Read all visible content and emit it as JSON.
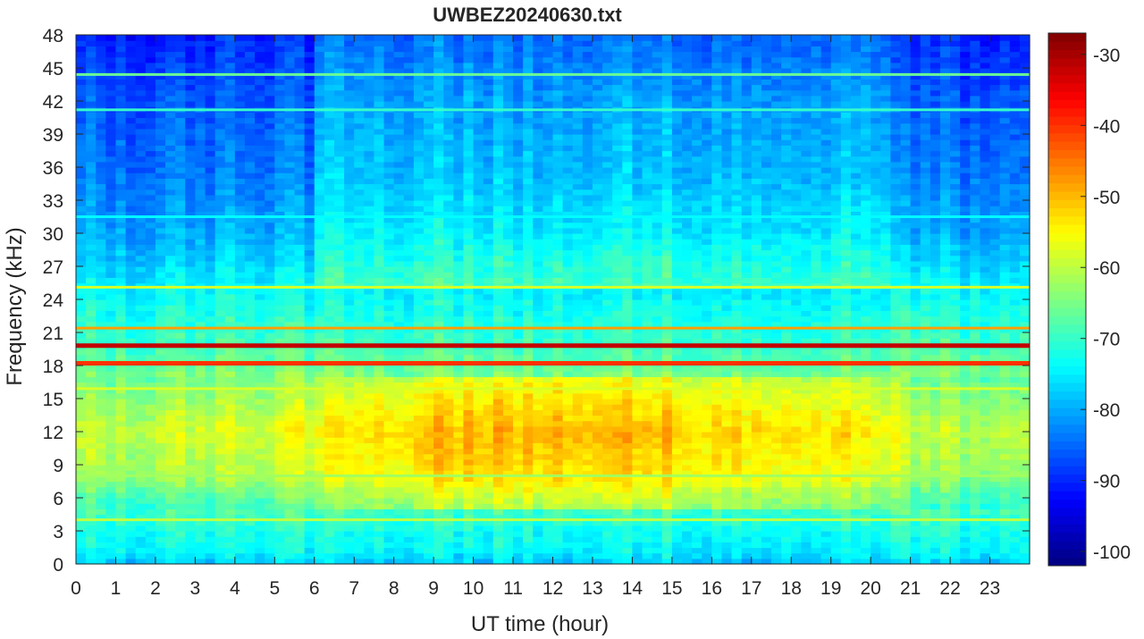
{
  "chart_data": {
    "type": "heatmap",
    "title": "UWBEZ20240630.txt",
    "xlabel": "UT time (hour)",
    "ylabel": "Frequency (kHz)",
    "xlim": [
      0,
      24
    ],
    "ylim": [
      0,
      48
    ],
    "x_ticks": [
      0,
      1,
      2,
      3,
      4,
      5,
      6,
      7,
      8,
      9,
      10,
      11,
      12,
      13,
      14,
      15,
      16,
      17,
      18,
      19,
      20,
      21,
      22,
      23
    ],
    "y_ticks": [
      0,
      3,
      6,
      9,
      12,
      15,
      18,
      21,
      24,
      27,
      30,
      33,
      36,
      39,
      42,
      45,
      48
    ],
    "colorbar": {
      "colormap": "jet",
      "clim": [
        -102,
        -27
      ],
      "ticks": [
        -30,
        -40,
        -50,
        -60,
        -70,
        -80,
        -90,
        -100
      ]
    },
    "features": {
      "background_level_by_freq": [
        {
          "f": 0,
          "level": -78
        },
        {
          "f": 1,
          "level": -74
        },
        {
          "f": 3,
          "level": -72
        },
        {
          "f": 6,
          "level": -66
        },
        {
          "f": 8,
          "level": -60
        },
        {
          "f": 12,
          "level": -57
        },
        {
          "f": 16,
          "level": -62
        },
        {
          "f": 18,
          "level": -66
        },
        {
          "f": 21,
          "level": -70
        },
        {
          "f": 25,
          "level": -74
        },
        {
          "f": 30,
          "level": -80
        },
        {
          "f": 36,
          "level": -84
        },
        {
          "f": 42,
          "level": -86
        },
        {
          "f": 48,
          "level": -90
        }
      ],
      "enhanced_band_by_hour": [
        {
          "t": 0,
          "level": -2
        },
        {
          "t": 5,
          "level": -1
        },
        {
          "t": 7,
          "level": 4
        },
        {
          "t": 10,
          "level": 8
        },
        {
          "t": 13,
          "level": 8
        },
        {
          "t": 16,
          "level": 6
        },
        {
          "t": 19,
          "level": 5
        },
        {
          "t": 20.5,
          "level": 2
        },
        {
          "t": 21,
          "level": -3
        },
        {
          "t": 24,
          "level": -3
        }
      ],
      "transmitter_lines": [
        {
          "f": 19.8,
          "level": -32
        },
        {
          "f": 18.2,
          "level": -40
        },
        {
          "f": 21.4,
          "level": -48
        },
        {
          "f": 25.1,
          "level": -58
        },
        {
          "f": 44.4,
          "level": -66
        },
        {
          "f": 41.2,
          "level": -70
        },
        {
          "f": 4.0,
          "level": -60
        },
        {
          "f": 8.0,
          "level": -62
        },
        {
          "f": 15.9,
          "level": -58
        },
        {
          "f": 31.5,
          "level": -74
        }
      ]
    }
  }
}
